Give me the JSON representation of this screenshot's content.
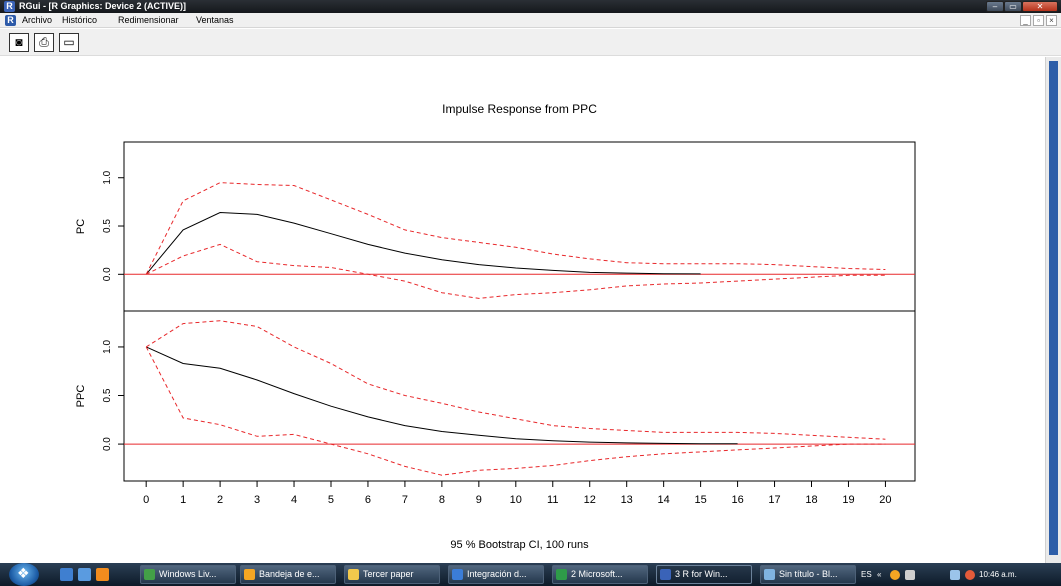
{
  "window": {
    "title": "RGui - [R Graphics: Device 2 (ACTIVE)]",
    "app_icon": "R",
    "min_label": "–",
    "max_label": "▭",
    "close_label": "✕"
  },
  "menu": {
    "items": [
      "Archivo",
      "Histórico",
      "Redimensionar",
      "Ventanas"
    ],
    "mdi_controls": [
      "_",
      "▫",
      "×"
    ]
  },
  "toolbar": {
    "buttons": [
      "camera-icon",
      "printer-icon",
      "window-icon"
    ],
    "glyphs": [
      "◙",
      "⎙",
      "▭"
    ]
  },
  "chart_data": {
    "type": "line",
    "title": "Impulse Response from PPC",
    "xlabel": "95 % Bootstrap CI,  100 runs",
    "x": [
      0,
      1,
      2,
      3,
      4,
      5,
      6,
      7,
      8,
      9,
      10,
      11,
      12,
      13,
      14,
      15,
      16,
      17,
      18,
      19,
      20
    ],
    "x_ticks": [
      "0",
      "1",
      "2",
      "3",
      "4",
      "5",
      "6",
      "7",
      "8",
      "9",
      "10",
      "11",
      "12",
      "13",
      "14",
      "15",
      "16",
      "17",
      "18",
      "19",
      "20"
    ],
    "xlim": [
      -0.6,
      20.8
    ],
    "panels": [
      {
        "ylabel": "PC",
        "ylim": [
          -0.38,
          1.37
        ],
        "y_ticks": [
          "0.0",
          "0.5",
          "1.0"
        ],
        "y_tick_values": [
          0,
          0.5,
          1.0
        ],
        "zero_line": 0,
        "series": [
          {
            "role": "response",
            "x": [
              0,
              1,
              2,
              3,
              4,
              5,
              6,
              7,
              8,
              9,
              10,
              11,
              12,
              13,
              14,
              15
            ],
            "values": [
              0,
              0.46,
              0.64,
              0.62,
              0.53,
              0.42,
              0.31,
              0.22,
              0.15,
              0.1,
              0.065,
              0.04,
              0.02,
              0.012,
              0.006,
              0.004
            ]
          },
          {
            "role": "upper",
            "values": [
              0,
              0.76,
              0.95,
              0.93,
              0.92,
              0.77,
              0.62,
              0.46,
              0.38,
              0.33,
              0.28,
              0.21,
              0.16,
              0.12,
              0.11,
              0.11,
              0.11,
              0.1,
              0.08,
              0.06,
              0.05
            ]
          },
          {
            "role": "lower",
            "values": [
              0,
              0.19,
              0.31,
              0.13,
              0.09,
              0.07,
              0.0,
              -0.07,
              -0.19,
              -0.25,
              -0.21,
              -0.19,
              -0.16,
              -0.12,
              -0.1,
              -0.09,
              -0.07,
              -0.05,
              -0.03,
              -0.01,
              -0.01
            ]
          }
        ]
      },
      {
        "ylabel": "PPC",
        "ylim": [
          -0.38,
          1.37
        ],
        "y_ticks": [
          "0.0",
          "0.5",
          "1.0"
        ],
        "y_tick_values": [
          0,
          0.5,
          1.0
        ],
        "zero_line": 0,
        "series": [
          {
            "role": "response",
            "x": [
              0,
              1,
              2,
              3,
              4,
              5,
              6,
              7,
              8,
              9,
              10,
              11,
              12,
              13,
              14,
              15,
              16
            ],
            "values": [
              1.0,
              0.83,
              0.78,
              0.66,
              0.52,
              0.39,
              0.28,
              0.19,
              0.13,
              0.09,
              0.055,
              0.035,
              0.02,
              0.012,
              0.007,
              0.004,
              0.003
            ]
          },
          {
            "role": "upper",
            "values": [
              1.0,
              1.24,
              1.27,
              1.21,
              1.0,
              0.83,
              0.62,
              0.5,
              0.42,
              0.33,
              0.26,
              0.19,
              0.16,
              0.14,
              0.12,
              0.12,
              0.12,
              0.11,
              0.09,
              0.07,
              0.05
            ]
          },
          {
            "role": "lower",
            "values": [
              1.0,
              0.27,
              0.2,
              0.08,
              0.1,
              0.0,
              -0.1,
              -0.23,
              -0.32,
              -0.27,
              -0.25,
              -0.22,
              -0.17,
              -0.13,
              -0.1,
              -0.08,
              -0.06,
              -0.04,
              -0.02,
              0.0,
              0.0
            ]
          }
        ]
      }
    ],
    "colors": {
      "response": "#000000",
      "band": "#e8282b",
      "zero_line": "#e8282b"
    },
    "grid": false,
    "legend": "none"
  },
  "taskbar": {
    "buttons": [
      {
        "label": "Windows Liv...",
        "icon": "messenger-icon",
        "color": "#43a047"
      },
      {
        "label": "Bandeja de e...",
        "icon": "mail-icon",
        "color": "#f5a623"
      },
      {
        "label": "Tercer paper",
        "icon": "folder-icon",
        "color": "#f2c94c"
      },
      {
        "label": "Integración d...",
        "icon": "word-icon",
        "color": "#3b7dd8"
      },
      {
        "label": "2 Microsoft...",
        "icon": "excel-icon",
        "color": "#2e9b49"
      },
      {
        "label": "3 R for Win...",
        "icon": "r-icon",
        "color": "#3a63b8"
      },
      {
        "label": "Sin título - Bl...",
        "icon": "notepad-icon",
        "color": "#7fb3e0"
      }
    ],
    "tray": {
      "lang": "ES",
      "arrow": "«",
      "time": "10:46 a.m."
    }
  }
}
